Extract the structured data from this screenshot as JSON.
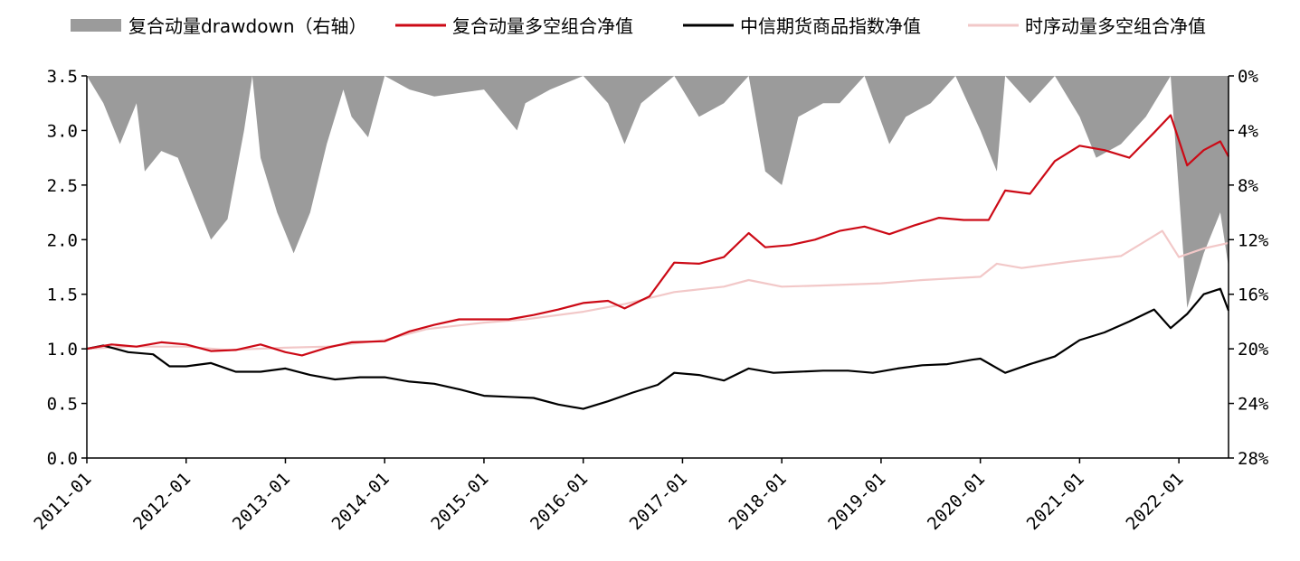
{
  "chart_data": {
    "type": "line",
    "title": "",
    "xlabel": "",
    "ylabel": "",
    "y2label": "",
    "x_ticks": [
      "2011-01",
      "2012-01",
      "2013-01",
      "2014-01",
      "2015-01",
      "2016-01",
      "2017-01",
      "2018-01",
      "2019-01",
      "2020-01",
      "2021-01",
      "2022-01"
    ],
    "x_range": [
      "2011-01",
      "2022-07"
    ],
    "ylim": [
      0,
      3.5
    ],
    "y_ticks": [
      "0.0",
      "0.5",
      "1.0",
      "1.5",
      "2.0",
      "2.5",
      "3.0",
      "3.5"
    ],
    "y2lim": [
      0,
      0.28
    ],
    "y2_reversed": true,
    "y2_ticks": [
      "0%",
      "4%",
      "8%",
      "12%",
      "16%",
      "20%",
      "24%",
      "28%"
    ],
    "grid": false,
    "legend_position": "top",
    "legend": [
      {
        "label": "复合动量drawdown（右轴）",
        "kind": "area",
        "color": "#9b9b9b"
      },
      {
        "label": "复合动量多空组合净值",
        "kind": "line",
        "color": "#cc0a16"
      },
      {
        "label": "中信期货商品指数净值",
        "kind": "line",
        "color": "#000000"
      },
      {
        "label": "时序动量多空组合净值",
        "kind": "line",
        "color": "#f2c8c8"
      }
    ],
    "series": [
      {
        "name": "复合动量多空组合净值",
        "axis": "left",
        "color": "#cc0a16",
        "points": [
          [
            "2011-01",
            1.0
          ],
          [
            "2011-04",
            1.04
          ],
          [
            "2011-07",
            1.02
          ],
          [
            "2011-10",
            1.06
          ],
          [
            "2012-01",
            1.04
          ],
          [
            "2012-04",
            0.98
          ],
          [
            "2012-07",
            0.99
          ],
          [
            "2012-10",
            1.04
          ],
          [
            "2013-01",
            0.97
          ],
          [
            "2013-03",
            0.94
          ],
          [
            "2013-06",
            1.01
          ],
          [
            "2013-09",
            1.06
          ],
          [
            "2014-01",
            1.07
          ],
          [
            "2014-04",
            1.16
          ],
          [
            "2014-07",
            1.22
          ],
          [
            "2014-10",
            1.27
          ],
          [
            "2015-01",
            1.27
          ],
          [
            "2015-04",
            1.27
          ],
          [
            "2015-07",
            1.31
          ],
          [
            "2015-10",
            1.36
          ],
          [
            "2016-01",
            1.42
          ],
          [
            "2016-04",
            1.44
          ],
          [
            "2016-06",
            1.37
          ],
          [
            "2016-09",
            1.48
          ],
          [
            "2016-12",
            1.79
          ],
          [
            "2017-03",
            1.78
          ],
          [
            "2017-06",
            1.84
          ],
          [
            "2017-09",
            2.06
          ],
          [
            "2017-11",
            1.93
          ],
          [
            "2018-02",
            1.95
          ],
          [
            "2018-05",
            2.0
          ],
          [
            "2018-08",
            2.08
          ],
          [
            "2018-11",
            2.12
          ],
          [
            "2019-02",
            2.05
          ],
          [
            "2019-05",
            2.13
          ],
          [
            "2019-08",
            2.2
          ],
          [
            "2019-11",
            2.18
          ],
          [
            "2020-02",
            2.18
          ],
          [
            "2020-04",
            2.45
          ],
          [
            "2020-07",
            2.42
          ],
          [
            "2020-10",
            2.72
          ],
          [
            "2021-01",
            2.86
          ],
          [
            "2021-04",
            2.82
          ],
          [
            "2021-07",
            2.75
          ],
          [
            "2021-10",
            2.98
          ],
          [
            "2021-12",
            3.14
          ],
          [
            "2022-02",
            2.68
          ],
          [
            "2022-04",
            2.82
          ],
          [
            "2022-06",
            2.9
          ],
          [
            "2022-07",
            2.76
          ]
        ]
      },
      {
        "name": "中信期货商品指数净值",
        "axis": "left",
        "color": "#000000",
        "points": [
          [
            "2011-01",
            1.0
          ],
          [
            "2011-03",
            1.03
          ],
          [
            "2011-06",
            0.97
          ],
          [
            "2011-09",
            0.95
          ],
          [
            "2011-11",
            0.84
          ],
          [
            "2012-01",
            0.84
          ],
          [
            "2012-04",
            0.87
          ],
          [
            "2012-07",
            0.79
          ],
          [
            "2012-10",
            0.79
          ],
          [
            "2013-01",
            0.82
          ],
          [
            "2013-04",
            0.76
          ],
          [
            "2013-07",
            0.72
          ],
          [
            "2013-10",
            0.74
          ],
          [
            "2014-01",
            0.74
          ],
          [
            "2014-04",
            0.7
          ],
          [
            "2014-07",
            0.68
          ],
          [
            "2014-10",
            0.63
          ],
          [
            "2015-01",
            0.57
          ],
          [
            "2015-04",
            0.56
          ],
          [
            "2015-07",
            0.55
          ],
          [
            "2015-10",
            0.49
          ],
          [
            "2016-01",
            0.45
          ],
          [
            "2016-04",
            0.52
          ],
          [
            "2016-07",
            0.6
          ],
          [
            "2016-10",
            0.67
          ],
          [
            "2016-12",
            0.78
          ],
          [
            "2017-03",
            0.76
          ],
          [
            "2017-06",
            0.71
          ],
          [
            "2017-09",
            0.82
          ],
          [
            "2017-12",
            0.78
          ],
          [
            "2018-03",
            0.79
          ],
          [
            "2018-06",
            0.8
          ],
          [
            "2018-09",
            0.8
          ],
          [
            "2018-12",
            0.78
          ],
          [
            "2019-03",
            0.82
          ],
          [
            "2019-06",
            0.85
          ],
          [
            "2019-09",
            0.86
          ],
          [
            "2019-12",
            0.9
          ],
          [
            "2020-01",
            0.91
          ],
          [
            "2020-04",
            0.78
          ],
          [
            "2020-07",
            0.86
          ],
          [
            "2020-10",
            0.93
          ],
          [
            "2021-01",
            1.08
          ],
          [
            "2021-04",
            1.15
          ],
          [
            "2021-07",
            1.25
          ],
          [
            "2021-10",
            1.36
          ],
          [
            "2021-12",
            1.19
          ],
          [
            "2022-02",
            1.32
          ],
          [
            "2022-04",
            1.5
          ],
          [
            "2022-06",
            1.55
          ],
          [
            "2022-07",
            1.35
          ]
        ]
      },
      {
        "name": "时序动量多空组合净值",
        "axis": "left",
        "color": "#f2c8c8",
        "points": [
          [
            "2011-01",
            1.0
          ],
          [
            "2011-06",
            1.02
          ],
          [
            "2012-01",
            1.02
          ],
          [
            "2012-06",
            0.99
          ],
          [
            "2013-01",
            1.01
          ],
          [
            "2013-06",
            1.02
          ],
          [
            "2014-01",
            1.08
          ],
          [
            "2014-06",
            1.18
          ],
          [
            "2015-01",
            1.24
          ],
          [
            "2015-06",
            1.27
          ],
          [
            "2016-01",
            1.34
          ],
          [
            "2016-06",
            1.41
          ],
          [
            "2016-12",
            1.52
          ],
          [
            "2017-06",
            1.57
          ],
          [
            "2017-09",
            1.63
          ],
          [
            "2018-01",
            1.57
          ],
          [
            "2018-06",
            1.58
          ],
          [
            "2019-01",
            1.6
          ],
          [
            "2019-06",
            1.63
          ],
          [
            "2020-01",
            1.66
          ],
          [
            "2020-03",
            1.78
          ],
          [
            "2020-06",
            1.74
          ],
          [
            "2020-12",
            1.8
          ],
          [
            "2021-06",
            1.85
          ],
          [
            "2021-11",
            2.08
          ],
          [
            "2022-01",
            1.84
          ],
          [
            "2022-04",
            1.92
          ],
          [
            "2022-07",
            1.97
          ]
        ]
      },
      {
        "name": "复合动量drawdown（右轴）",
        "axis": "right",
        "kind": "area",
        "color": "#9b9b9b",
        "points": [
          [
            "2011-01",
            0.0
          ],
          [
            "2011-03",
            0.02
          ],
          [
            "2011-05",
            0.05
          ],
          [
            "2011-07",
            0.02
          ],
          [
            "2011-08",
            0.07
          ],
          [
            "2011-10",
            0.055
          ],
          [
            "2011-12",
            0.06
          ],
          [
            "2012-02",
            0.09
          ],
          [
            "2012-04",
            0.12
          ],
          [
            "2012-06",
            0.105
          ],
          [
            "2012-08",
            0.04
          ],
          [
            "2012-09",
            0.0
          ],
          [
            "2012-10",
            0.06
          ],
          [
            "2012-12",
            0.1
          ],
          [
            "2013-02",
            0.13
          ],
          [
            "2013-04",
            0.1
          ],
          [
            "2013-06",
            0.05
          ],
          [
            "2013-08",
            0.01
          ],
          [
            "2013-09",
            0.03
          ],
          [
            "2013-11",
            0.045
          ],
          [
            "2014-01",
            0.0
          ],
          [
            "2014-04",
            0.01
          ],
          [
            "2014-07",
            0.015
          ],
          [
            "2015-01",
            0.01
          ],
          [
            "2015-03",
            0.025
          ],
          [
            "2015-05",
            0.04
          ],
          [
            "2015-06",
            0.02
          ],
          [
            "2015-09",
            0.01
          ],
          [
            "2016-01",
            0.0
          ],
          [
            "2016-04",
            0.02
          ],
          [
            "2016-06",
            0.05
          ],
          [
            "2016-08",
            0.02
          ],
          [
            "2016-12",
            0.0
          ],
          [
            "2017-03",
            0.03
          ],
          [
            "2017-06",
            0.02
          ],
          [
            "2017-09",
            0.0
          ],
          [
            "2017-11",
            0.07
          ],
          [
            "2018-01",
            0.08
          ],
          [
            "2018-03",
            0.03
          ],
          [
            "2018-06",
            0.02
          ],
          [
            "2018-08",
            0.02
          ],
          [
            "2018-11",
            0.0
          ],
          [
            "2019-02",
            0.05
          ],
          [
            "2019-04",
            0.03
          ],
          [
            "2019-07",
            0.02
          ],
          [
            "2019-10",
            0.0
          ],
          [
            "2020-01",
            0.04
          ],
          [
            "2020-03",
            0.07
          ],
          [
            "2020-04",
            0.0
          ],
          [
            "2020-07",
            0.02
          ],
          [
            "2020-10",
            0.0
          ],
          [
            "2021-01",
            0.03
          ],
          [
            "2021-03",
            0.06
          ],
          [
            "2021-06",
            0.05
          ],
          [
            "2021-09",
            0.03
          ],
          [
            "2021-12",
            0.0
          ],
          [
            "2022-02",
            0.17
          ],
          [
            "2022-04",
            0.13
          ],
          [
            "2022-06",
            0.1
          ],
          [
            "2022-07",
            0.14
          ]
        ]
      }
    ]
  }
}
